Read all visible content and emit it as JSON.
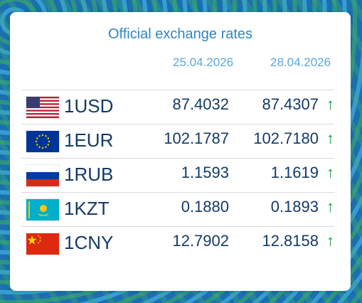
{
  "title": "Official exchange rates",
  "dates": [
    "25.04.2026",
    "28.04.2026"
  ],
  "rates": [
    {
      "flag": "us-flag-icon",
      "code": "1USD",
      "rate1": "87.4032",
      "rate2": "87.4307",
      "trend": "↑"
    },
    {
      "flag": "eu-flag-icon",
      "code": "1EUR",
      "rate1": "102.1787",
      "rate2": "102.7180",
      "trend": "↑"
    },
    {
      "flag": "ru-flag-icon",
      "code": "1RUB",
      "rate1": "1.1593",
      "rate2": "1.1619",
      "trend": "↑"
    },
    {
      "flag": "kz-flag-icon",
      "code": "1KZT",
      "rate1": "0.1880",
      "rate2": "0.1893",
      "trend": "↑"
    },
    {
      "flag": "cn-flag-icon",
      "code": "1CNY",
      "rate1": "12.7902",
      "rate2": "12.8158",
      "trend": "↑"
    }
  ],
  "colors": {
    "title": "#2f86c4",
    "value": "#143a66",
    "up": "#1e9a4b"
  }
}
